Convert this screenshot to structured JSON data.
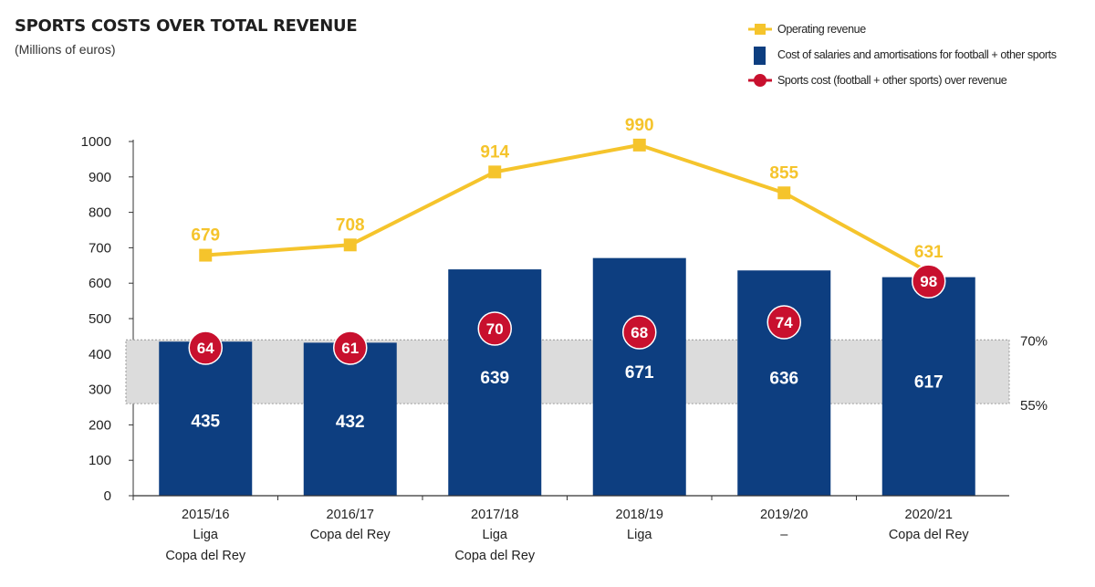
{
  "header": {
    "title": "SPORTS COSTS OVER TOTAL REVENUE",
    "subtitle": "(Millions of euros)"
  },
  "legend": {
    "items": [
      {
        "label": "Operating revenue",
        "kind": "line-square"
      },
      {
        "label": "Cost of salaries and amortisations for football + other sports",
        "kind": "bar"
      },
      {
        "label": "Sports cost (football + other sports) over revenue",
        "kind": "line-circle"
      }
    ]
  },
  "colors": {
    "bar": "#0d3e80",
    "line": "#f5c42c",
    "circle": "#c8102e",
    "band": "#dcdcdc",
    "axis": "#333333"
  },
  "chart_data": {
    "type": "bar",
    "title": "SPORTS COSTS OVER TOTAL REVENUE",
    "subtitle": "(Millions of euros)",
    "ylim": [
      0,
      1000
    ],
    "yticks": [
      0,
      100,
      200,
      300,
      400,
      500,
      600,
      700,
      800,
      900,
      1000
    ],
    "categories": [
      {
        "season": "2015/16",
        "titles": [
          "Liga",
          "Copa del Rey"
        ]
      },
      {
        "season": "2016/17",
        "titles": [
          "Copa del Rey"
        ]
      },
      {
        "season": "2017/18",
        "titles": [
          "Liga",
          "Copa del Rey"
        ]
      },
      {
        "season": "2018/19",
        "titles": [
          "Liga"
        ]
      },
      {
        "season": "2019/20",
        "titles": [
          "–"
        ]
      },
      {
        "season": "2020/21",
        "titles": [
          "Copa del Rey"
        ]
      }
    ],
    "series": [
      {
        "name": "Cost of salaries and amortisations for football + other sports",
        "type": "bar",
        "values": [
          435,
          432,
          639,
          671,
          636,
          617
        ]
      },
      {
        "name": "Operating revenue",
        "type": "line",
        "values": [
          679,
          708,
          914,
          990,
          855,
          631
        ]
      },
      {
        "name": "Sports cost (football + other sports) over revenue",
        "type": "badge",
        "unit": "%",
        "values": [
          64,
          61,
          70,
          68,
          74,
          98
        ]
      }
    ],
    "reference_band": {
      "from_value": 260,
      "to_value": 440,
      "upper_label": "70%",
      "lower_label": "55%"
    }
  }
}
